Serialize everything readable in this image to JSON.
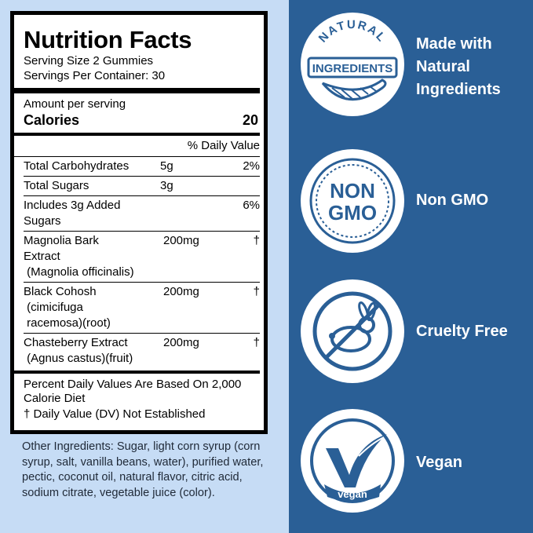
{
  "label": {
    "title": "Nutrition Facts",
    "serving_size": "Serving Size 2 Gummies",
    "servings_per_container": "Servings Per Container: 30",
    "amount_per_serving": "Amount per serving",
    "calories_label": "Calories",
    "calories_value": "20",
    "daily_value_header": "% Daily Value",
    "rows": [
      {
        "name": "Total Carbohydrates",
        "amount": "5g",
        "dv": "2%"
      },
      {
        "name": "Total Sugars",
        "amount": "3g",
        "dv": ""
      },
      {
        "name_line1": "Includes 3g Added",
        "name_line2": "Sugars",
        "dv": "6%"
      }
    ],
    "botanicals": [
      {
        "lines": [
          "Magnolia Bark",
          "Extract",
          " (Magnolia officinalis)"
        ],
        "amount": "200mg",
        "dv": "†"
      },
      {
        "lines": [
          "Black Cohosh",
          " (cimicifuga",
          " racemosa)(root)"
        ],
        "amount": "200mg",
        "dv": "†"
      },
      {
        "lines": [
          "Chasteberry Extract",
          " (Agnus castus)(fruit)"
        ],
        "amount": "200mg",
        "dv": "†"
      }
    ],
    "footnote_1": "Percent Daily Values Are Based On 2,000 Calorie Diet",
    "footnote_2": "† Daily Value (DV) Not Established"
  },
  "other_ingredients": "Other Ingredients: Sugar, light corn syrup (corn syrup, salt, vanilla beans, water), purified water, pectic, coconut oil, natural flavor, citric acid, sodium citrate, vegetable juice (color).",
  "features": [
    {
      "badge_text": "NATURAL",
      "badge_subtext": "INGREDIENTS",
      "label_line1": "Made with",
      "label_line2": "Natural",
      "label_line3": "Ingredients",
      "icon": "leaf-icon"
    },
    {
      "badge_text": "NON",
      "badge_subtext": "GMO",
      "label_line1": "Non GMO",
      "icon": "non-gmo-icon"
    },
    {
      "label_line1": "Cruelty Free",
      "icon": "no-rabbit-icon"
    },
    {
      "badge_text": "vegan",
      "label_line1": "Vegan",
      "icon": "checkmark-leaf-icon"
    }
  ],
  "colors": {
    "panel_blue": "#2a5f96",
    "light_blue": "#c6dcf5",
    "badge_blue": "#2a5f96"
  }
}
